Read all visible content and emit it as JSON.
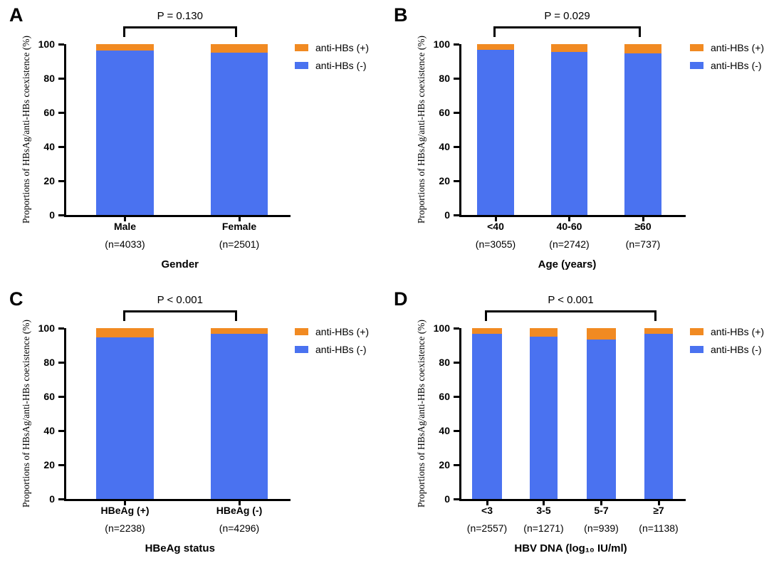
{
  "figure": {
    "background": "#ffffff",
    "colors": {
      "positive": "#F18A22",
      "negative": "#4A72F0",
      "axis": "#000000"
    },
    "legend": {
      "items": [
        {
          "series": "positive",
          "label": "anti-HBs (+)",
          "color": "#F18A22"
        },
        {
          "series": "negative",
          "label": "anti-HBs (-)",
          "color": "#4A72F0"
        }
      ]
    },
    "y_axis": {
      "label": "Proportions of HBsAg/anti-HBs coexistence (%)",
      "ticks": [
        0,
        20,
        40,
        60,
        80,
        100
      ],
      "min": 0,
      "max": 100
    }
  },
  "chart_data": [
    {
      "panel_label": "A",
      "type": "bar",
      "stacked": true,
      "xlabel": "Gender",
      "p_value": "P = 0.130",
      "comparison_span": [
        0,
        1
      ],
      "categories": [
        "Male",
        "Female"
      ],
      "n_labels": [
        "(n=4033)",
        "(n=2501)"
      ],
      "series": [
        {
          "name": "anti-HBs (+)",
          "color": "#F18A22",
          "values": [
            3.7,
            4.8
          ]
        },
        {
          "name": "anti-HBs (-)",
          "color": "#4A72F0",
          "values": [
            96.3,
            95.2
          ]
        }
      ],
      "ylim": [
        0,
        100
      ],
      "legend_position": "right"
    },
    {
      "panel_label": "B",
      "type": "bar",
      "stacked": true,
      "xlabel": "Age (years)",
      "p_value": "P = 0.029",
      "comparison_span": [
        0,
        2
      ],
      "categories": [
        "<40",
        "40-60",
        "≥60"
      ],
      "n_labels": [
        "(n=3055)",
        "(n=2742)",
        "(n=737)"
      ],
      "series": [
        {
          "name": "anti-HBs (+)",
          "color": "#F18A22",
          "values": [
            3.5,
            4.7,
            5.6
          ]
        },
        {
          "name": "anti-HBs (-)",
          "color": "#4A72F0",
          "values": [
            96.5,
            95.3,
            94.4
          ]
        }
      ],
      "ylim": [
        0,
        100
      ],
      "legend_position": "right"
    },
    {
      "panel_label": "C",
      "type": "bar",
      "stacked": true,
      "xlabel": "HBeAg status",
      "p_value": "P < 0.001",
      "comparison_span": [
        0,
        1
      ],
      "categories": [
        "HBeAg (+)",
        "HBeAg (-)"
      ],
      "n_labels": [
        "(n=2238)",
        "(n=4296)"
      ],
      "series": [
        {
          "name": "anti-HBs (+)",
          "color": "#F18A22",
          "values": [
            5.4,
            3.3
          ]
        },
        {
          "name": "anti-HBs (-)",
          "color": "#4A72F0",
          "values": [
            94.6,
            96.7
          ]
        }
      ],
      "ylim": [
        0,
        100
      ],
      "legend_position": "right"
    },
    {
      "panel_label": "D",
      "type": "bar",
      "stacked": true,
      "xlabel": "HBV DNA (log₁₀ IU/ml)",
      "p_value": "P < 0.001",
      "comparison_span": [
        0,
        3
      ],
      "categories": [
        "<3",
        "3-5",
        "5-7",
        "≥7"
      ],
      "n_labels": [
        "(n=2557)",
        "(n=1271)",
        "(n=939)",
        "(n=1138)"
      ],
      "series": [
        {
          "name": "anti-HBs (+)",
          "color": "#F18A22",
          "values": [
            3.3,
            5.0,
            6.8,
            3.5
          ]
        },
        {
          "name": "anti-HBs (-)",
          "color": "#4A72F0",
          "values": [
            96.7,
            95.0,
            93.2,
            96.5
          ]
        }
      ],
      "ylim": [
        0,
        100
      ],
      "legend_position": "right"
    }
  ]
}
